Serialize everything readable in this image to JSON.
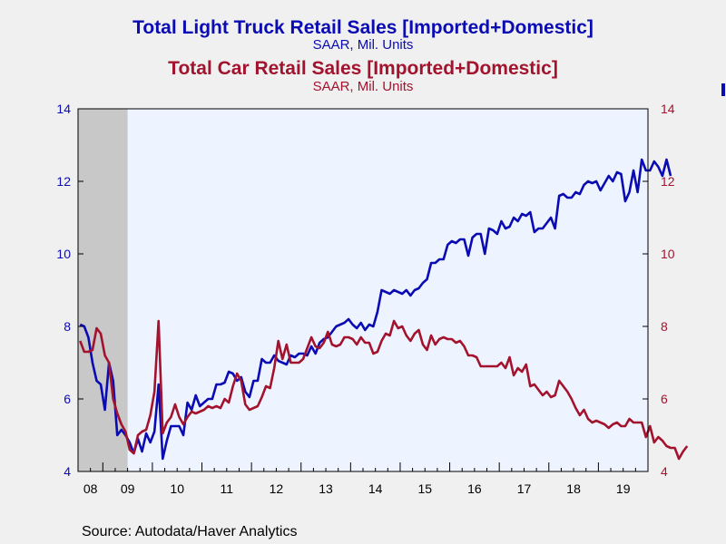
{
  "titles": {
    "line1": "Total Light Truck Retail Sales [Imported+Domestic]",
    "sub1": "SAAR, Mil. Units",
    "line2": "Total Car Retail Sales [Imported+Domestic]",
    "sub2": "SAAR, Mil. Units"
  },
  "source": "Source:  Autodata/Haver Analytics",
  "colors": {
    "truck": "#0b0bb3",
    "car": "#a3132e",
    "plot_bg": "#eef4ff",
    "recession": "#c8c8c8"
  },
  "chart_data": {
    "type": "line",
    "x_start": "2008-07",
    "x_end": "2019-12",
    "x_tick_labels": [
      "08",
      "09",
      "10",
      "11",
      "12",
      "13",
      "14",
      "15",
      "16",
      "17",
      "18",
      "19"
    ],
    "y_left": {
      "ylim": [
        4,
        14
      ],
      "ticks": [
        "4",
        "6",
        "8",
        "10",
        "12",
        "14"
      ]
    },
    "y_right": {
      "ylim": [
        4,
        14
      ],
      "ticks": [
        "4",
        "6",
        "8",
        "10",
        "12",
        "14"
      ]
    },
    "shaded_recession": [
      "2008-07",
      "2009-06"
    ],
    "series": [
      {
        "name": "Total Light Truck Retail Sales [Imported+Domestic]",
        "axis": "left",
        "values": [
          8.05,
          8.0,
          7.7,
          7.0,
          6.5,
          6.4,
          5.7,
          7.0,
          6.5,
          5.0,
          5.15,
          5.0,
          4.8,
          4.5,
          4.9,
          4.55,
          5.05,
          4.8,
          5.1,
          6.4,
          4.35,
          4.85,
          5.25,
          5.25,
          5.25,
          5.0,
          5.9,
          5.7,
          6.1,
          5.8,
          5.9,
          6.0,
          6.0,
          6.4,
          6.4,
          6.45,
          6.75,
          6.7,
          6.5,
          6.6,
          6.2,
          6.05,
          6.5,
          6.5,
          7.1,
          7.0,
          7.0,
          7.2,
          7.05,
          7.0,
          6.95,
          7.2,
          7.15,
          7.25,
          7.25,
          7.2,
          7.45,
          7.25,
          7.55,
          7.65,
          7.7,
          7.85,
          8.0,
          8.05,
          8.1,
          8.2,
          8.05,
          7.95,
          8.1,
          7.9,
          8.05,
          8.0,
          8.4,
          9.0,
          8.95,
          8.9,
          9.0,
          8.95,
          8.9,
          9.0,
          8.85,
          9.0,
          9.05,
          9.2,
          9.3,
          9.75,
          9.75,
          9.85,
          9.85,
          10.25,
          10.35,
          10.3,
          10.4,
          10.4,
          9.95,
          10.45,
          10.55,
          10.55,
          10.0,
          10.7,
          10.65,
          10.55,
          10.9,
          10.7,
          10.75,
          11.0,
          10.9,
          11.1,
          11.05,
          11.15,
          10.6,
          10.7,
          10.7,
          10.85,
          11.0,
          10.7,
          11.6,
          11.65,
          11.55,
          11.55,
          11.7,
          11.65,
          11.9,
          12.0,
          11.95,
          12.0,
          11.75,
          11.95,
          12.15,
          12.0,
          12.25,
          12.2,
          11.45,
          11.7,
          12.3,
          11.7,
          12.6,
          12.3,
          12.3,
          12.55,
          12.4,
          12.15,
          12.6,
          12.15
        ]
      },
      {
        "name": "Total Car Retail Sales [Imported+Domestic]",
        "axis": "right",
        "values": [
          7.6,
          7.3,
          7.3,
          7.35,
          7.95,
          7.8,
          7.2,
          7.0,
          6.0,
          5.6,
          5.3,
          5.1,
          4.6,
          4.5,
          5.0,
          5.1,
          5.15,
          5.55,
          6.2,
          8.15,
          5.05,
          5.35,
          5.5,
          5.85,
          5.5,
          5.3,
          5.5,
          5.65,
          5.6,
          5.65,
          5.7,
          5.8,
          5.75,
          5.8,
          5.75,
          6.0,
          5.9,
          6.35,
          6.7,
          6.5,
          5.85,
          5.7,
          5.75,
          5.8,
          6.05,
          6.35,
          6.3,
          6.85,
          7.6,
          7.1,
          7.5,
          7.0,
          7.0,
          7.0,
          7.1,
          7.4,
          7.7,
          7.45,
          7.4,
          7.55,
          7.85,
          7.5,
          7.45,
          7.5,
          7.7,
          7.7,
          7.65,
          7.5,
          7.7,
          7.55,
          7.55,
          7.25,
          7.3,
          7.6,
          7.8,
          7.75,
          8.15,
          7.95,
          8.0,
          7.75,
          7.6,
          7.8,
          7.9,
          7.5,
          7.35,
          7.75,
          7.5,
          7.65,
          7.7,
          7.65,
          7.65,
          7.55,
          7.6,
          7.45,
          7.2,
          7.2,
          7.15,
          6.9,
          6.9,
          6.9,
          6.9,
          6.9,
          7.0,
          6.85,
          7.15,
          6.65,
          6.85,
          6.75,
          6.95,
          6.35,
          6.4,
          6.25,
          6.1,
          6.2,
          6.05,
          6.1,
          6.5,
          6.35,
          6.2,
          6.0,
          5.75,
          5.55,
          5.7,
          5.45,
          5.35,
          5.4,
          5.35,
          5.3,
          5.2,
          5.3,
          5.35,
          5.25,
          5.25,
          5.45,
          5.35,
          5.35,
          5.35,
          4.95,
          5.25,
          4.8,
          4.95,
          4.85,
          4.7,
          4.65,
          4.65,
          4.35,
          4.55,
          4.7
        ]
      }
    ]
  }
}
